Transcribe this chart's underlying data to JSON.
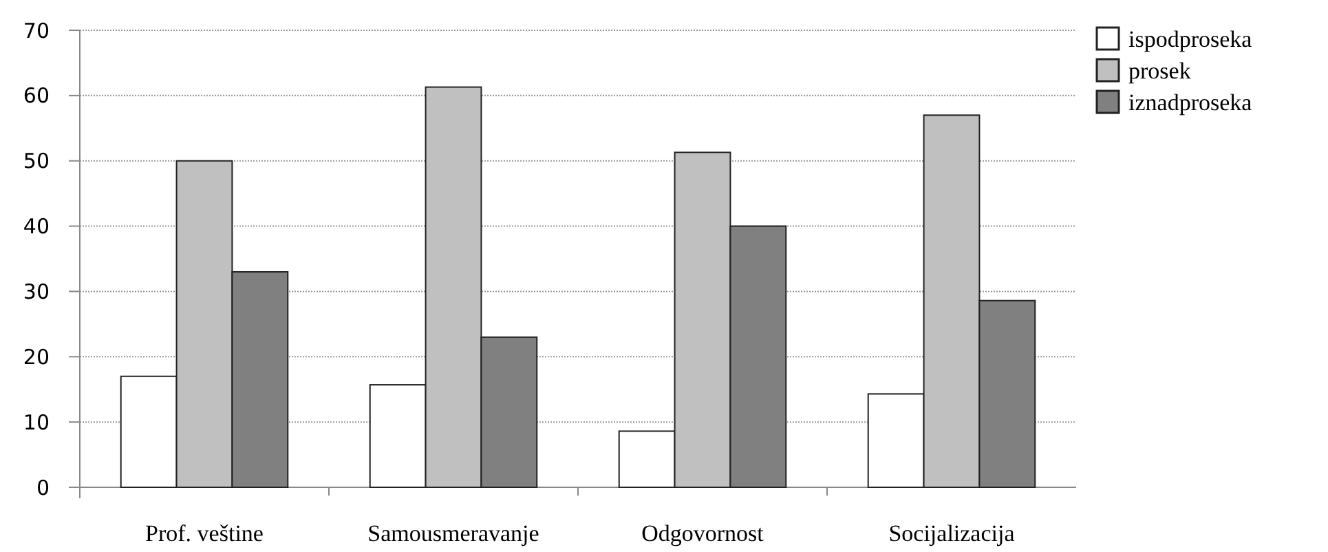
{
  "chart_data": {
    "type": "bar",
    "categories": [
      "Prof. veštine",
      "Samousmeravanje",
      "Odgovornost",
      "Socijalizacija"
    ],
    "series": [
      {
        "name": "ispodproseka",
        "color": "#ffffff",
        "values": [
          17,
          15.7,
          8.6,
          14.3
        ]
      },
      {
        "name": "prosek",
        "color": "#c0c0c0",
        "values": [
          50,
          61.3,
          51.3,
          57
        ]
      },
      {
        "name": "iznadproseka",
        "color": "#808080",
        "values": [
          33,
          23,
          40,
          28.6
        ]
      }
    ],
    "ylim": [
      0,
      70
    ],
    "yticks": [
      0,
      10,
      20,
      30,
      40,
      50,
      60,
      70
    ],
    "grid": "y",
    "legend": "top right"
  }
}
